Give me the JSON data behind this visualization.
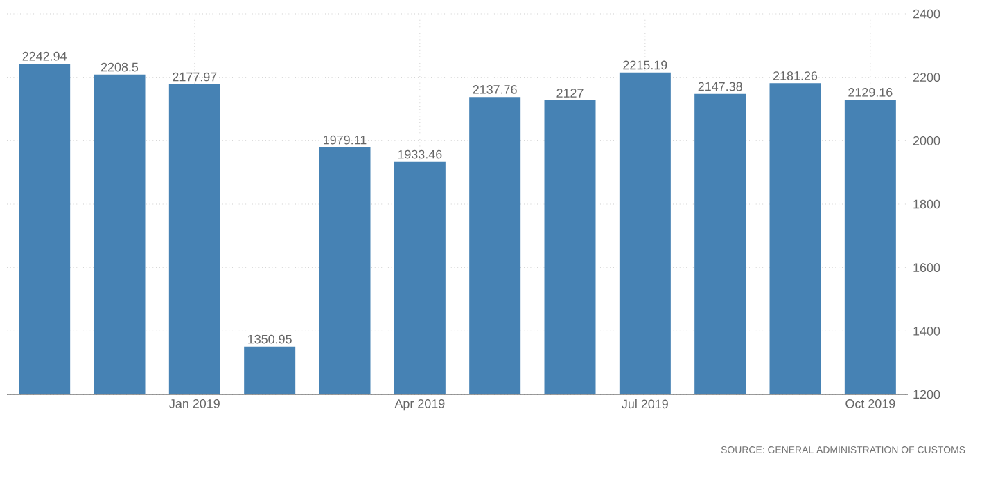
{
  "chart_data": {
    "type": "bar",
    "categories": [
      null,
      null,
      "Jan 2019",
      null,
      null,
      "Apr 2019",
      null,
      null,
      "Jul 2019",
      null,
      null,
      "Oct 2019"
    ],
    "values": [
      2242.94,
      2208.5,
      2177.97,
      1350.95,
      1979.11,
      1933.46,
      2137.76,
      2127,
      2215.19,
      2147.38,
      2181.26,
      2129.16
    ],
    "color": "#4682b4",
    "ylim": [
      1200,
      2400
    ],
    "yticks": [
      1200,
      1400,
      1600,
      1800,
      2000,
      2200,
      2400
    ],
    "grid": true,
    "data_labels": true,
    "annotations": [
      "SOURCE: GENERAL ADMINISTRATION OF CUSTOMS"
    ]
  }
}
